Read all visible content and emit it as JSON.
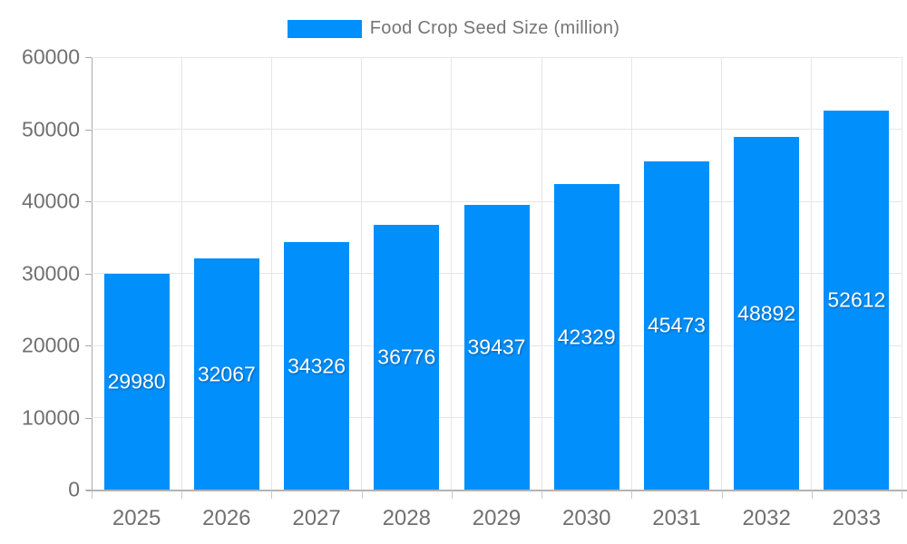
{
  "legend": {
    "label": "Food Crop Seed Size (million)",
    "swatch_color": "#008FFB"
  },
  "chart_data": {
    "type": "bar",
    "title": "Food Crop Seed Size (million)",
    "categories": [
      "2025",
      "2026",
      "2027",
      "2028",
      "2029",
      "2030",
      "2031",
      "2032",
      "2033"
    ],
    "values": [
      29980,
      32067,
      34326,
      36776,
      39437,
      42329,
      45473,
      48892,
      52612
    ],
    "series_name": "Food Crop Seed Size (million)",
    "xlabel": "",
    "ylabel": "",
    "ylim": [
      0,
      60000
    ],
    "ytick_interval": 10000,
    "ytick_labels": [
      "0",
      "10000",
      "20000",
      "30000",
      "40000",
      "50000",
      "60000"
    ],
    "grid": true,
    "legend_position": "top",
    "bar_color": "#008FFB",
    "data_label_color": "#ffffff",
    "axis_label_color": "#707070",
    "gridline_color": "#e6e6e6"
  }
}
